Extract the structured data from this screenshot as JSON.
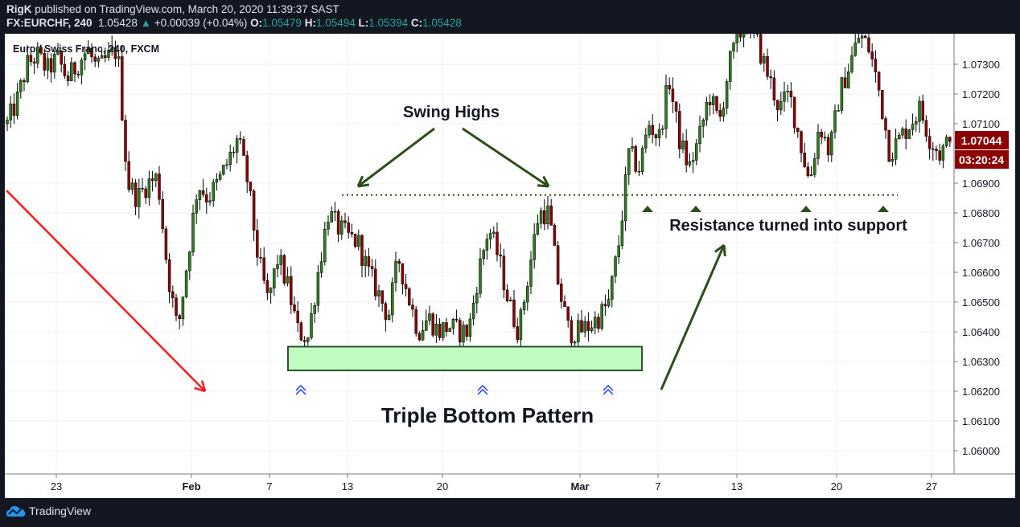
{
  "header": {
    "author": "RigK",
    "published": "published on TradingView.com, March 20, 2020 11:39:37 SAST",
    "symbol": "FX:EURCHF, 240",
    "last": "1.05428",
    "change": "+0.00039 (+0.04%)",
    "open_label": "O:",
    "open": "1.05479",
    "high_label": "H:",
    "high": "1.05494",
    "low_label": "L:",
    "low": "1.05394",
    "close_label": "C:",
    "close": "1.05428"
  },
  "footer": {
    "brand": "TradingView",
    "logo_icon": "tradingview-cloud-icon"
  },
  "colors": {
    "up": "#2e7d1f",
    "down": "#8b0000",
    "price_label": "#8b0000",
    "annotation": "#2d4d1a",
    "zone_fill": "#c0fcc0",
    "chevron": "#1f3fff",
    "downtrend_arrow": "#ff1a1a"
  },
  "chart_data": {
    "type": "candlestick",
    "title": "Euro / Swiss Franc, 240, FXCM",
    "y_ticks": [
      "1.07300",
      "1.07200",
      "1.07100",
      "1.06900",
      "1.06800",
      "1.06700",
      "1.06600",
      "1.06500",
      "1.06400",
      "1.06300",
      "1.06200",
      "1.06100",
      "1.06000"
    ],
    "ylim": [
      1.0592,
      1.074
    ],
    "x_ticks": [
      {
        "label": "23",
        "bold": false
      },
      {
        "label": "Feb",
        "bold": true
      },
      {
        "label": "7",
        "bold": false
      },
      {
        "label": "13",
        "bold": false
      },
      {
        "label": "20",
        "bold": false
      },
      {
        "label": "Mar",
        "bold": true
      },
      {
        "label": "7",
        "bold": false
      },
      {
        "label": "13",
        "bold": false
      },
      {
        "label": "20",
        "bold": false
      },
      {
        "label": "27",
        "bold": false
      }
    ],
    "last_price": "1.07044",
    "countdown": "03:20:24",
    "close_samples": [
      1.071,
      1.0718,
      1.073,
      1.0733,
      1.0728,
      1.0732,
      1.0725,
      1.073,
      1.0735,
      1.0728,
      1.0732,
      1.0735,
      1.069,
      1.0685,
      1.069,
      1.0692,
      1.066,
      1.064,
      1.0665,
      1.069,
      1.0685,
      1.069,
      1.0697,
      1.0705,
      1.069,
      1.0665,
      1.065,
      1.0665,
      1.0655,
      1.064,
      1.0638,
      1.066,
      1.068,
      1.0675,
      1.0672,
      1.067,
      1.066,
      1.0653,
      1.0645,
      1.0665,
      1.0652,
      1.064,
      1.0645,
      1.064,
      1.0642,
      1.064,
      1.064,
      1.066,
      1.0675,
      1.0665,
      1.065,
      1.064,
      1.066,
      1.068,
      1.068,
      1.0655,
      1.064,
      1.064,
      1.0642,
      1.0645,
      1.065,
      1.067,
      1.07,
      1.0695,
      1.071,
      1.0705,
      1.0725,
      1.0705,
      1.0695,
      1.0705,
      1.072,
      1.071,
      1.073,
      1.074,
      1.0745,
      1.0735,
      1.0725,
      1.0715,
      1.072,
      1.0705,
      1.069,
      1.071,
      1.07,
      1.072,
      1.073,
      1.074,
      1.0735,
      1.072,
      1.07,
      1.0705,
      1.071,
      1.0715,
      1.0705,
      1.07,
      1.0704
    ],
    "annotations": {
      "swing_highs": "Swing Highs",
      "resistance_support": "Resistance turned into support",
      "pattern": "Triple Bottom Pattern",
      "resistance_level": 1.0686,
      "support_zone": [
        1.0627,
        1.0635
      ]
    }
  }
}
